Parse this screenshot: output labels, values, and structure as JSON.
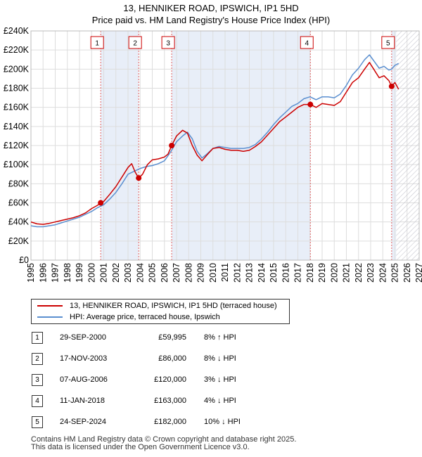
{
  "title": {
    "line1": "13, HENNIKER ROAD, IPSWICH, IP1 5HD",
    "line2": "Price paid vs. HM Land Registry's House Price Index (HPI)"
  },
  "chart_data": {
    "type": "line",
    "title": "13, HENNIKER ROAD, IPSWICH, IP1 5HD — Price paid vs. HM Land Registry's House Price Index (HPI)",
    "xlim": [
      1995,
      2027
    ],
    "ylim": [
      0,
      240000
    ],
    "x_ticks": [
      1995,
      1996,
      1997,
      1998,
      1999,
      2000,
      2001,
      2002,
      2003,
      2004,
      2005,
      2006,
      2007,
      2008,
      2009,
      2010,
      2011,
      2012,
      2013,
      2014,
      2015,
      2016,
      2017,
      2018,
      2019,
      2020,
      2021,
      2022,
      2023,
      2024,
      2025,
      2026,
      2027
    ],
    "y_ticks": [
      {
        "value": 0,
        "label": "£0"
      },
      {
        "value": 20000,
        "label": "£20K"
      },
      {
        "value": 40000,
        "label": "£40K"
      },
      {
        "value": 60000,
        "label": "£60K"
      },
      {
        "value": 80000,
        "label": "£80K"
      },
      {
        "value": 100000,
        "label": "£100K"
      },
      {
        "value": 120000,
        "label": "£120K"
      },
      {
        "value": 140000,
        "label": "£140K"
      },
      {
        "value": 160000,
        "label": "£160K"
      },
      {
        "value": 180000,
        "label": "£180K"
      },
      {
        "value": 200000,
        "label": "£200K"
      },
      {
        "value": 220000,
        "label": "£220K"
      },
      {
        "value": 240000,
        "label": "£240K"
      }
    ],
    "shaded_ranges": [
      [
        2000.75,
        2003.88
      ],
      [
        2006.6,
        2018.03
      ],
      [
        2024.73,
        2025.1
      ]
    ],
    "forecast_start": 2025.1,
    "series": [
      {
        "name": "13, HENNIKER ROAD, IPSWICH, IP1 5HD (terraced house)",
        "color": "#cc0000",
        "x": [
          1995.0,
          1995.5,
          1996.0,
          1996.5,
          1997.0,
          1997.5,
          1998.0,
          1998.5,
          1999.0,
          1999.5,
          2000.0,
          2000.5,
          2000.75,
          2001.0,
          2001.5,
          2002.0,
          2002.5,
          2003.0,
          2003.3,
          2003.6,
          2003.88,
          2004.2,
          2004.6,
          2005.0,
          2005.5,
          2006.0,
          2006.3,
          2006.6,
          2007.0,
          2007.5,
          2007.9,
          2008.3,
          2008.7,
          2009.1,
          2009.5,
          2010.0,
          2010.5,
          2011.0,
          2011.5,
          2012.0,
          2012.5,
          2013.0,
          2013.5,
          2014.0,
          2014.5,
          2015.0,
          2015.5,
          2016.0,
          2016.5,
          2017.0,
          2017.5,
          2018.03,
          2018.5,
          2019.0,
          2019.5,
          2020.0,
          2020.5,
          2021.0,
          2021.5,
          2022.0,
          2022.5,
          2022.9,
          2023.3,
          2023.7,
          2024.1,
          2024.5,
          2024.73,
          2025.0,
          2025.3
        ],
        "y": [
          40000,
          38000,
          37500,
          38500,
          40000,
          41500,
          43000,
          44500,
          46500,
          49500,
          54000,
          57500,
          59995,
          61500,
          69000,
          77000,
          87000,
          97000,
          101000,
          92000,
          86000,
          90000,
          100000,
          105000,
          106000,
          108000,
          111000,
          120000,
          130000,
          136000,
          133000,
          120000,
          110000,
          104000,
          110000,
          117000,
          118000,
          116000,
          115000,
          115000,
          114000,
          115000,
          119000,
          124000,
          131000,
          138000,
          145000,
          150000,
          155000,
          160000,
          163000,
          163000,
          160000,
          164000,
          163000,
          162000,
          166000,
          176000,
          186000,
          191000,
          200000,
          207000,
          199000,
          191000,
          193000,
          188000,
          182000,
          186000,
          179000
        ]
      },
      {
        "name": "HPI: Average price, terraced house, Ipswich",
        "color": "#5b8fd0",
        "x": [
          1995.0,
          1995.5,
          1996.0,
          1996.5,
          1997.0,
          1997.5,
          1998.0,
          1998.5,
          1999.0,
          1999.5,
          2000.0,
          2000.5,
          2001.0,
          2001.5,
          2002.0,
          2002.5,
          2003.0,
          2003.5,
          2004.0,
          2004.5,
          2005.0,
          2005.5,
          2006.0,
          2006.5,
          2007.0,
          2007.5,
          2007.9,
          2008.3,
          2008.7,
          2009.1,
          2009.5,
          2010.0,
          2010.5,
          2011.0,
          2011.5,
          2012.0,
          2012.5,
          2013.0,
          2013.5,
          2014.0,
          2014.5,
          2015.0,
          2015.5,
          2016.0,
          2016.5,
          2017.0,
          2017.5,
          2018.0,
          2018.5,
          2019.0,
          2019.5,
          2020.0,
          2020.5,
          2021.0,
          2021.5,
          2022.0,
          2022.5,
          2022.9,
          2023.3,
          2023.7,
          2024.1,
          2024.5,
          2024.73,
          2025.0,
          2025.3
        ],
        "y": [
          36000,
          35000,
          35000,
          36000,
          37000,
          39000,
          41000,
          43000,
          45000,
          48000,
          51000,
          55000,
          58000,
          64000,
          71000,
          80000,
          90000,
          93000,
          96000,
          98000,
          99000,
          101000,
          104000,
          113000,
          124000,
          130000,
          134000,
          127000,
          114000,
          107000,
          111000,
          117000,
          119000,
          118000,
          117000,
          117000,
          117000,
          118000,
          121000,
          127000,
          134000,
          142000,
          149000,
          155000,
          161000,
          164000,
          169000,
          171000,
          168000,
          171000,
          171000,
          170000,
          174000,
          183000,
          194000,
          201000,
          210000,
          215000,
          208000,
          201000,
          203000,
          199000,
          200000,
          204000,
          206000
        ]
      }
    ],
    "sales": [
      {
        "num": "1",
        "date": "29-SEP-2000",
        "x": 2000.75,
        "price": 59995,
        "price_label": "£59,995",
        "delta": "8% ↑ HPI"
      },
      {
        "num": "2",
        "date": "17-NOV-2003",
        "x": 2003.88,
        "price": 86000,
        "price_label": "£86,000",
        "delta": "8% ↓ HPI"
      },
      {
        "num": "3",
        "date": "07-AUG-2006",
        "x": 2006.6,
        "price": 120000,
        "price_label": "£120,000",
        "delta": "3% ↓ HPI"
      },
      {
        "num": "4",
        "date": "11-JAN-2018",
        "x": 2018.03,
        "price": 163000,
        "price_label": "£163,000",
        "delta": "4% ↓ HPI"
      },
      {
        "num": "5",
        "date": "24-SEP-2024",
        "x": 2024.73,
        "price": 182000,
        "price_label": "£182,000",
        "delta": "10% ↓ HPI"
      }
    ]
  },
  "legend": {
    "property_label": "13, HENNIKER ROAD, IPSWICH, IP1 5HD (terraced house)",
    "hpi_label": "HPI: Average price, terraced house, Ipswich"
  },
  "footer": {
    "line1": "Contains HM Land Registry data © Crown copyright and database right 2025.",
    "line2": "This data is licensed under the Open Government Licence v3.0."
  },
  "colors": {
    "property": "#cc0000",
    "hpi": "#5b8fd0",
    "shade": "#e8eef8",
    "grid": "#dddddd",
    "hatch": "#c8c8d0"
  }
}
